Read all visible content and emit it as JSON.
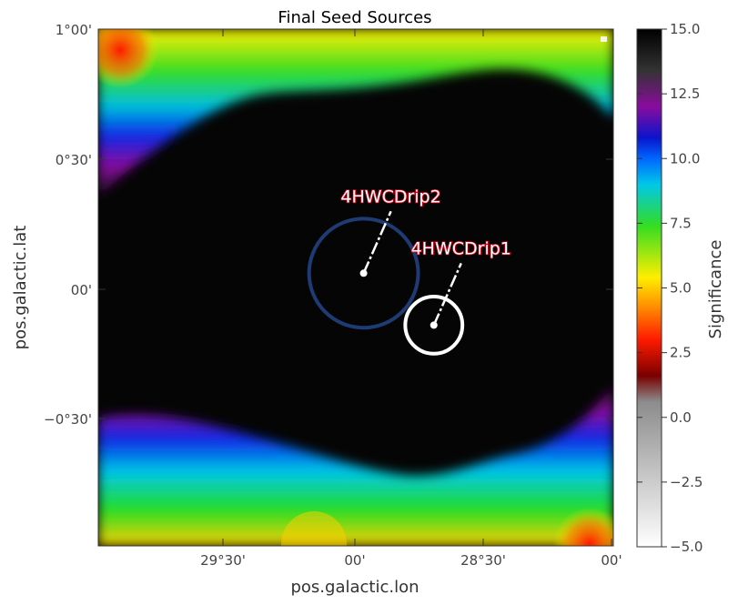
{
  "chart_data": {
    "type": "heatmap",
    "title": "Final Seed Sources",
    "xlabel": "pos.galactic.lon",
    "ylabel": "pos.galactic.lat",
    "x_ticks": [
      "29°30'",
      "00'",
      "28°30'",
      "00'"
    ],
    "y_ticks": [
      "1°00'",
      "0°30'",
      "00'",
      "−0°30'"
    ],
    "colorbar": {
      "label": "Significance",
      "min": -5.0,
      "max": 15.0,
      "ticks": [
        "−5.0",
        "−2.5",
        "0.0",
        "2.5",
        "5.0",
        "7.5",
        "10.0",
        "12.5",
        "15.0"
      ]
    },
    "sources": [
      {
        "name": "4HWCDrip2",
        "l_deg": 28.95,
        "b_deg": 0.06,
        "extent_deg": 0.21,
        "circle_color": "#1f3b73"
      },
      {
        "name": "4HWCDrip1",
        "l_deg": 28.68,
        "b_deg": -0.14,
        "extent_deg": 0.11,
        "circle_color": "#ffffff"
      }
    ],
    "axes": {
      "l_range": [
        29.97,
        27.99
      ],
      "b_range": [
        -0.99,
        1.0
      ]
    }
  }
}
